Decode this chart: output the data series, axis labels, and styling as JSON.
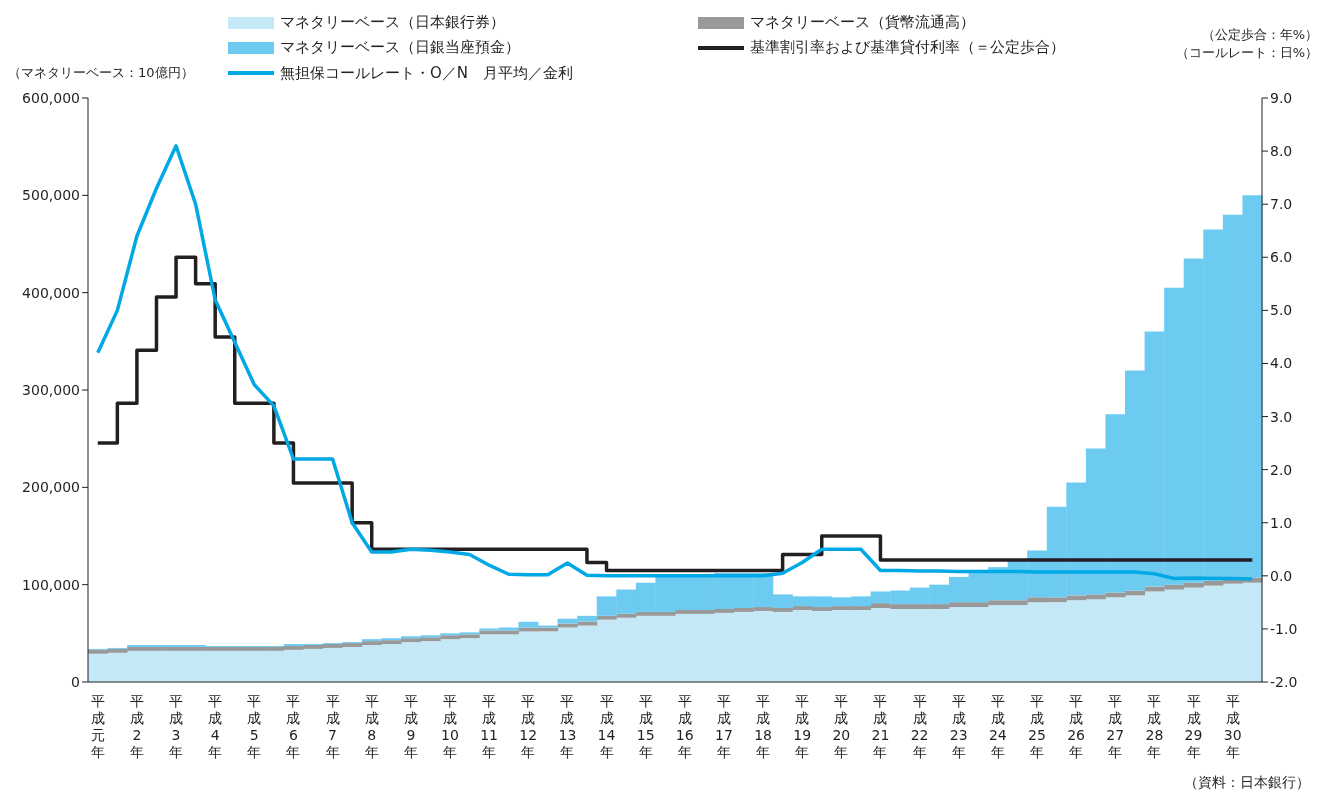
{
  "chart_data": {
    "type": "bar",
    "stacked": true,
    "ylabel": "（マネタリーベース：10億円）",
    "y2label": "（公定歩合：年%）（コールレート：日%）",
    "annotations": [
      "（資料：日本銀行）"
    ],
    "categories": [
      "平成元年",
      null,
      "平成2年",
      null,
      "平成3年",
      null,
      "平成4年",
      null,
      "平成5年",
      null,
      "平成6年",
      null,
      "平成7年",
      null,
      "平成8年",
      null,
      "平成9年",
      null,
      "平成10年",
      null,
      "平成11年",
      null,
      "平成12年",
      null,
      "平成13年",
      null,
      "平成14年",
      null,
      "平成15年",
      null,
      "平成16年",
      null,
      "平成17年",
      null,
      "平成18年",
      null,
      "平成19年",
      null,
      "平成20年",
      null,
      "平成21年",
      null,
      "平成22年",
      null,
      "平成23年",
      null,
      "平成24年",
      null,
      "平成25年",
      null,
      "平成26年",
      null,
      "平成27年",
      null,
      "平成28年",
      null,
      "平成29年",
      null,
      "平成30年",
      null
    ],
    "series": [
      {
        "name": "マネタリーベース（日本銀行券）",
        "color": "#c5e8f7",
        "values": [
          29000,
          30000,
          32000,
          32000,
          32000,
          32000,
          32000,
          32000,
          32000,
          32000,
          33000,
          34000,
          35000,
          36000,
          38000,
          39000,
          41000,
          42000,
          44000,
          45000,
          49000,
          49000,
          52000,
          52000,
          56000,
          58000,
          64000,
          66000,
          68000,
          68000,
          70000,
          70000,
          71000,
          72000,
          73000,
          72000,
          74000,
          73000,
          74000,
          74000,
          76000,
          75000,
          75000,
          75000,
          77000,
          77000,
          79000,
          79000,
          82000,
          82000,
          84000,
          85000,
          87000,
          89000,
          93000,
          95000,
          97000,
          99000,
          101000,
          102000
        ]
      },
      {
        "name": "マネタリーベース（貨幣流通高）",
        "color": "#999999",
        "values": [
          4000,
          4000,
          4000,
          4000,
          4000,
          4000,
          4000,
          4000,
          4000,
          4000,
          4000,
          4000,
          4000,
          4000,
          4000,
          4000,
          4000,
          4000,
          4000,
          4000,
          4000,
          4000,
          4000,
          4000,
          4000,
          4000,
          4000,
          4000,
          4000,
          4000,
          4000,
          4000,
          4000,
          4000,
          4000,
          4000,
          4000,
          4000,
          4000,
          4000,
          5000,
          5000,
          5000,
          5000,
          5000,
          5000,
          5000,
          5000,
          5000,
          5000,
          5000,
          5000,
          5000,
          5000,
          5000,
          5000,
          5000,
          5000,
          5000,
          5000
        ]
      },
      {
        "name": "マネタリーベース（日銀当座預金）",
        "color": "#6dcbf1",
        "values": [
          1000,
          1000,
          2000,
          2000,
          2000,
          2000,
          1000,
          1000,
          1000,
          1000,
          2000,
          1000,
          1000,
          1000,
          2000,
          2000,
          2000,
          2000,
          2000,
          2000,
          2000,
          3000,
          6000,
          2000,
          5000,
          6000,
          20000,
          25000,
          30000,
          36000,
          36000,
          36000,
          37000,
          36000,
          35000,
          14000,
          10000,
          11000,
          9000,
          10000,
          12000,
          14000,
          17000,
          20000,
          26000,
          33000,
          34000,
          41000,
          48000,
          93000,
          116000,
          150000,
          183000,
          226000,
          262000,
          305000,
          333000,
          361000,
          374000,
          393000
        ]
      },
      {
        "name": "基準割引率および基準貸付利率（＝公定歩合）",
        "color": "#231f20",
        "type": "step",
        "axis": "y2",
        "values": [
          2.5,
          3.25,
          4.25,
          5.25,
          6.0,
          5.5,
          4.5,
          3.25,
          3.25,
          2.5,
          1.75,
          1.75,
          1.75,
          1.0,
          0.5,
          0.5,
          0.5,
          0.5,
          0.5,
          0.5,
          0.5,
          0.5,
          0.5,
          0.5,
          0.5,
          0.25,
          0.1,
          0.1,
          0.1,
          0.1,
          0.1,
          0.1,
          0.1,
          0.1,
          0.1,
          0.4,
          0.4,
          0.75,
          0.75,
          0.75,
          0.3,
          0.3,
          0.3,
          0.3,
          0.3,
          0.3,
          0.3,
          0.3,
          0.3,
          0.3,
          0.3,
          0.3,
          0.3,
          0.3,
          0.3,
          0.3,
          0.3,
          0.3,
          0.3,
          0.3
        ]
      },
      {
        "name": "無担保コールレート・O／N　月平均／金利",
        "color": "#00a8e6",
        "type": "line",
        "axis": "y2",
        "values": [
          4.2,
          5.0,
          6.4,
          7.3,
          8.1,
          7.0,
          5.2,
          4.4,
          3.6,
          3.2,
          2.2,
          2.2,
          2.2,
          1.0,
          0.45,
          0.45,
          0.5,
          0.48,
          0.45,
          0.4,
          0.2,
          0.03,
          0.02,
          0.02,
          0.24,
          0.01,
          0.0,
          0.0,
          0.0,
          0.0,
          0.0,
          0.0,
          0.0,
          0.0,
          0.0,
          0.05,
          0.25,
          0.5,
          0.5,
          0.5,
          0.1,
          0.1,
          0.09,
          0.09,
          0.08,
          0.08,
          0.08,
          0.08,
          0.07,
          0.07,
          0.07,
          0.07,
          0.07,
          0.07,
          0.04,
          -0.05,
          -0.04,
          -0.05,
          -0.05,
          -0.06
        ]
      }
    ],
    "ylim": [
      0,
      600000
    ],
    "yticks": [
      0,
      {
        "value": 100000,
        "label": "100,000"
      },
      {
        "value": 200000,
        "label": "200,000"
      },
      {
        "value": 300000,
        "label": "300,000"
      },
      {
        "value": 400000,
        "label": "400,000"
      },
      {
        "value": 500000,
        "label": "500,000"
      },
      {
        "value": 600000,
        "label": "600,000"
      }
    ],
    "y2lim": [
      -2,
      9
    ],
    "y2ticks": [
      {
        "value": -2,
        "label": "-2.0"
      },
      {
        "value": -1,
        "label": "-1.0"
      },
      {
        "value": 0,
        "label": "0.0"
      },
      {
        "value": 1,
        "label": "1.0"
      },
      {
        "value": 2,
        "label": "2.0"
      },
      {
        "value": 3,
        "label": "3.0"
      },
      {
        "value": 4,
        "label": "4.0"
      },
      {
        "value": 5,
        "label": "5.0"
      },
      {
        "value": 6,
        "label": "6.0"
      },
      {
        "value": 7,
        "label": "7.0"
      },
      {
        "value": 8,
        "label": "8.0"
      },
      {
        "value": 9,
        "label": "9.0"
      }
    ],
    "legend": "top",
    "marker": "none",
    "grid": false
  }
}
